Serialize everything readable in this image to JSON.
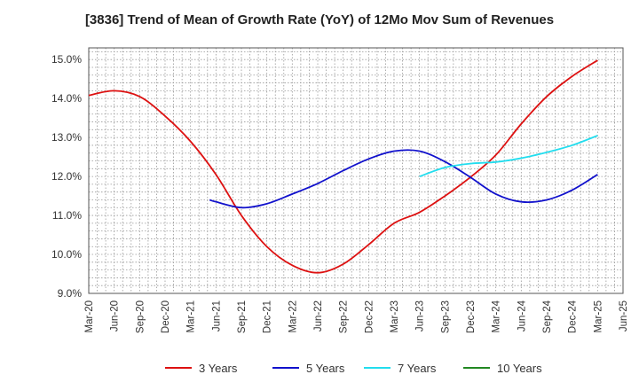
{
  "chart_data": {
    "type": "line",
    "title": "[3836]  Trend of Mean of Growth Rate (YoY) of 12Mo Mov Sum of Revenues",
    "xlabel": "",
    "ylabel": "",
    "ylim": [
      9.0,
      15.3
    ],
    "yticks": [
      "9.0%",
      "10.0%",
      "11.0%",
      "12.0%",
      "13.0%",
      "14.0%",
      "15.0%"
    ],
    "ytick_values": [
      9.0,
      10.0,
      11.0,
      12.0,
      13.0,
      14.0,
      15.0
    ],
    "x_categories": [
      "Mar-20",
      "Jun-20",
      "Sep-20",
      "Dec-20",
      "Mar-21",
      "Jun-21",
      "Sep-21",
      "Dec-21",
      "Mar-22",
      "Jun-22",
      "Sep-22",
      "Dec-22",
      "Mar-23",
      "Jun-23",
      "Sep-23",
      "Dec-23",
      "Mar-24",
      "Jun-24",
      "Sep-24",
      "Dec-24",
      "Mar-25",
      "Jun-25"
    ],
    "grid": true,
    "legend_position": "bottom",
    "series": [
      {
        "name": "3 Years",
        "color": "#dd1111",
        "points": [
          [
            0,
            14.08
          ],
          [
            1,
            14.2
          ],
          [
            2,
            14.05
          ],
          [
            3,
            13.55
          ],
          [
            4,
            12.9
          ],
          [
            5,
            12.05
          ],
          [
            6,
            11.0
          ],
          [
            7,
            10.2
          ],
          [
            8,
            9.72
          ],
          [
            9,
            9.53
          ],
          [
            10,
            9.75
          ],
          [
            11,
            10.25
          ],
          [
            12,
            10.8
          ],
          [
            13,
            11.08
          ],
          [
            14,
            11.5
          ],
          [
            15,
            11.98
          ],
          [
            16,
            12.55
          ],
          [
            17,
            13.35
          ],
          [
            18,
            14.05
          ],
          [
            19,
            14.57
          ],
          [
            20,
            14.98
          ]
        ]
      },
      {
        "name": "5 Years",
        "color": "#1111cc",
        "points": [
          [
            4.75,
            11.4
          ],
          [
            5,
            11.35
          ],
          [
            6,
            11.2
          ],
          [
            7,
            11.3
          ],
          [
            8,
            11.55
          ],
          [
            9,
            11.82
          ],
          [
            10,
            12.15
          ],
          [
            11,
            12.45
          ],
          [
            12,
            12.65
          ],
          [
            13,
            12.65
          ],
          [
            14,
            12.38
          ],
          [
            15,
            11.98
          ],
          [
            16,
            11.55
          ],
          [
            17,
            11.35
          ],
          [
            18,
            11.4
          ],
          [
            19,
            11.65
          ],
          [
            20,
            12.05
          ]
        ]
      },
      {
        "name": "7 Years",
        "color": "#22ddee",
        "points": [
          [
            13,
            12.0
          ],
          [
            14,
            12.23
          ],
          [
            15,
            12.33
          ],
          [
            16,
            12.37
          ],
          [
            17,
            12.47
          ],
          [
            18,
            12.62
          ],
          [
            19,
            12.8
          ],
          [
            20,
            13.05
          ]
        ]
      },
      {
        "name": "10 Years",
        "color": "#228822",
        "points": []
      }
    ]
  }
}
